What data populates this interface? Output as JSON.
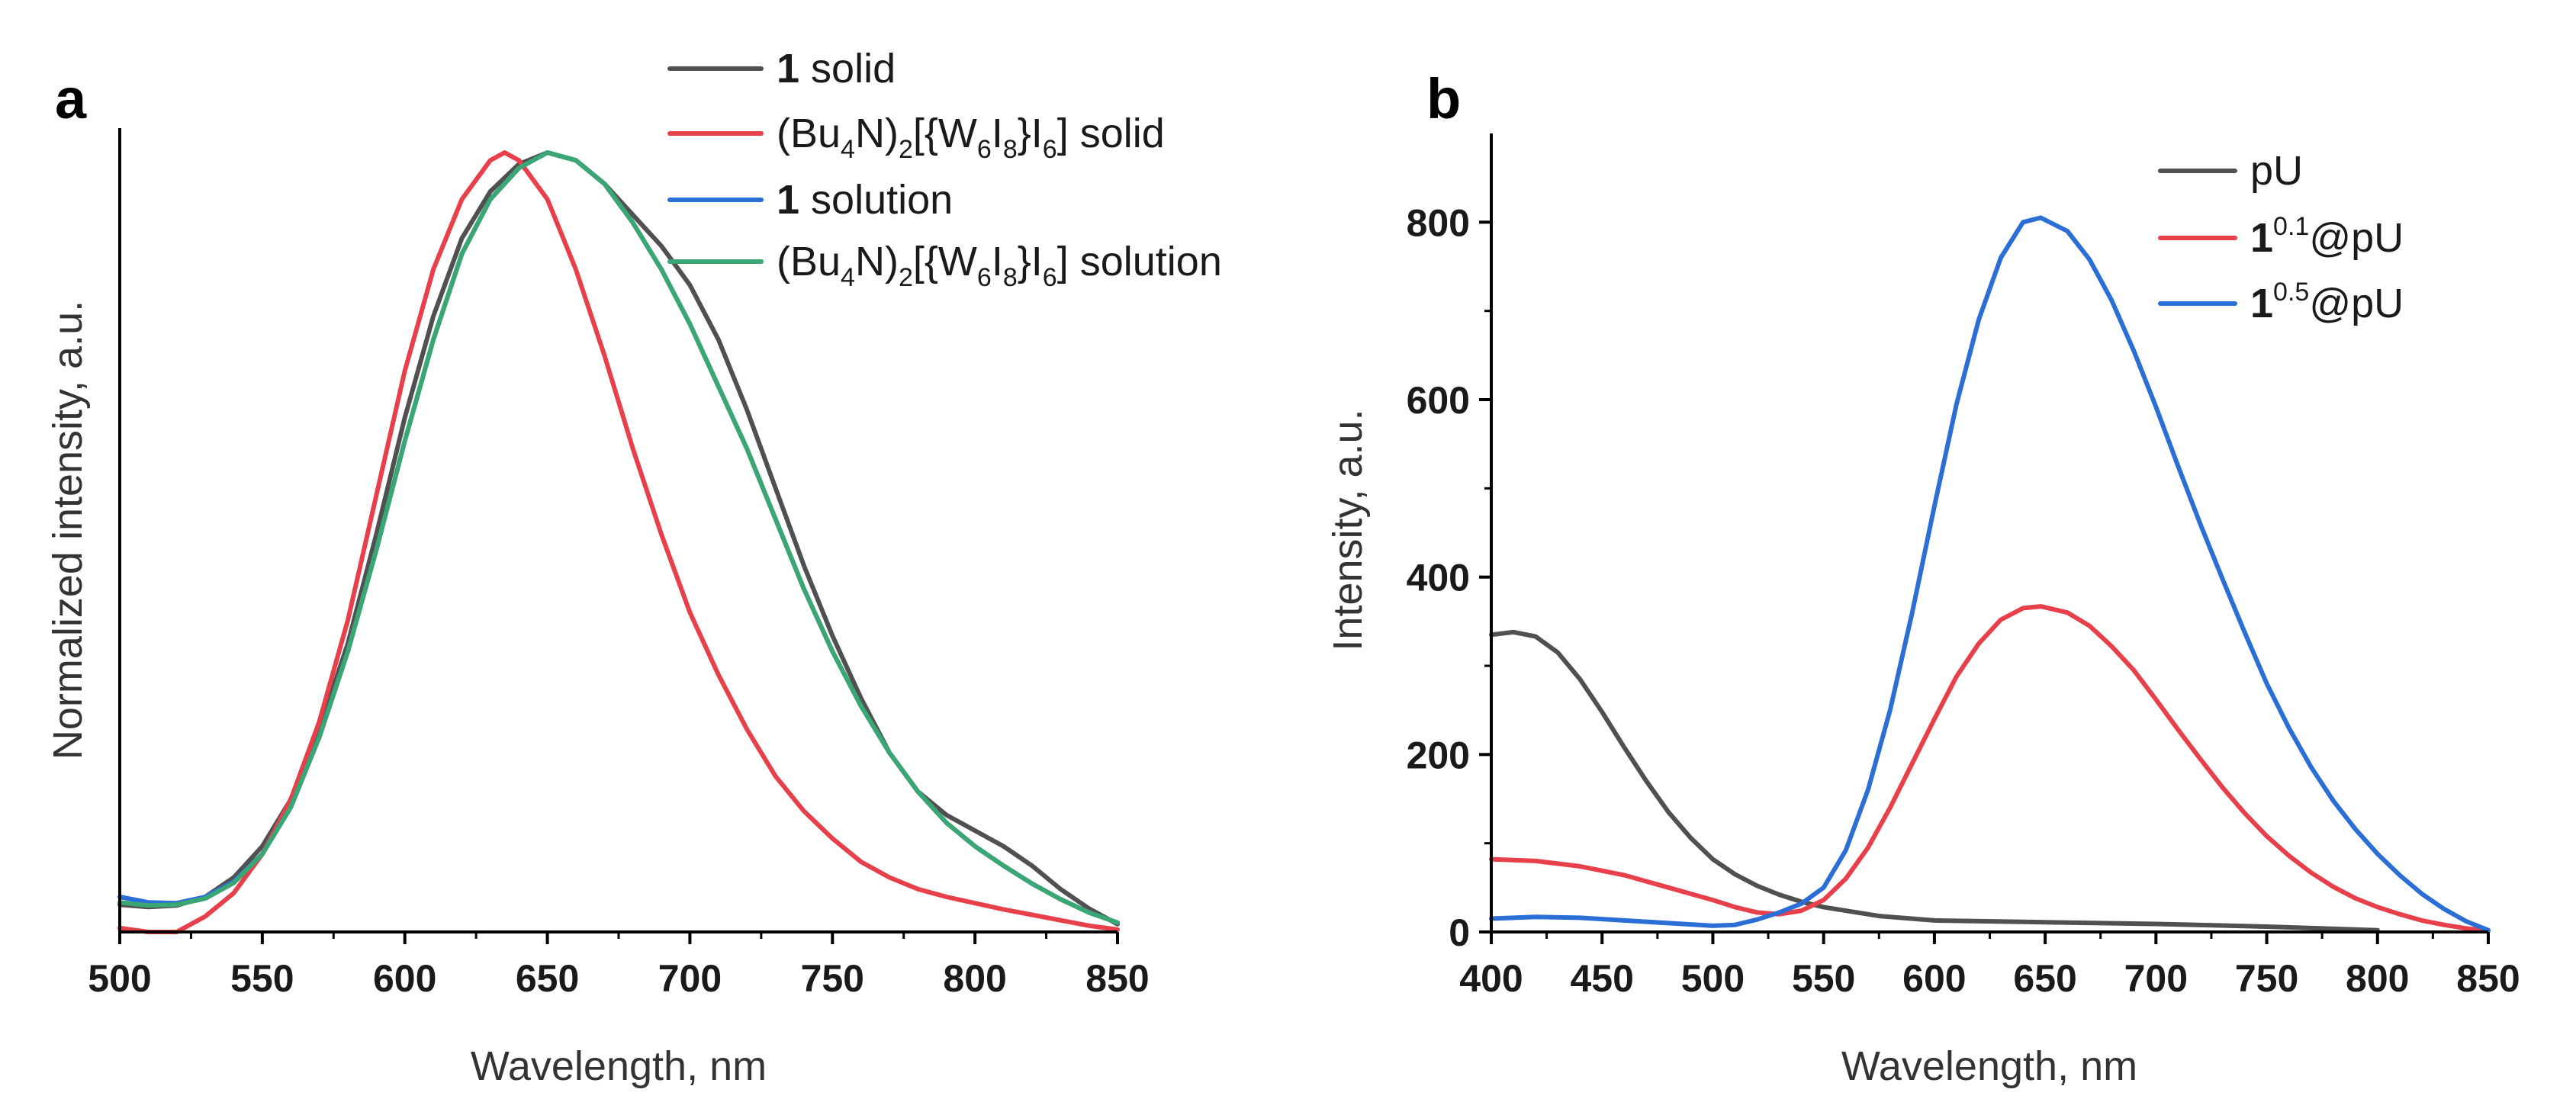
{
  "colors": {
    "dark_gray": "#505050",
    "red": "#e8404a",
    "blue": "#2b6fd6",
    "green": "#3aa673"
  },
  "chart_data": [
    {
      "panel": "a",
      "type": "line",
      "title": "",
      "xlabel": "Wavelength, nm",
      "ylabel": "Normalized intensity, a.u.",
      "xlim": [
        500,
        850
      ],
      "ylim": [
        0,
        1
      ],
      "x_ticks": [
        "500",
        "550",
        "600",
        "650",
        "700",
        "750",
        "800",
        "850"
      ],
      "y_ticks": [],
      "grid": false,
      "legend_position": "top-right",
      "legend": [
        {
          "bold": "1",
          "text": " solid",
          "color": "dark_gray"
        },
        {
          "pre": "(Bu",
          "sub1": "4",
          "mid1": "N)",
          "sub2": "2",
          "mid2": "[{W",
          "sub3": "6",
          "mid3": "I",
          "sub4": "8",
          "mid4": "}I",
          "sub5": "6",
          "post": "] solid",
          "color": "red"
        },
        {
          "bold": "1",
          "text": " solution",
          "color": "blue"
        },
        {
          "pre": "(Bu",
          "sub1": "4",
          "mid1": "N)",
          "sub2": "2",
          "mid2": "[{W",
          "sub3": "6",
          "mid3": "I",
          "sub4": "8",
          "mid4": "}I",
          "sub5": "6",
          "post": "] solution",
          "color": "green"
        }
      ],
      "series": [
        {
          "name": "1 solid",
          "color": "dark_gray",
          "x": [
            500,
            510,
            520,
            530,
            540,
            550,
            560,
            570,
            580,
            590,
            600,
            610,
            620,
            630,
            640,
            650,
            660,
            670,
            680,
            690,
            700,
            710,
            720,
            730,
            740,
            750,
            760,
            770,
            780,
            790,
            800,
            810,
            820,
            830,
            840,
            850
          ],
          "y": [
            0.035,
            0.032,
            0.034,
            0.045,
            0.07,
            0.11,
            0.17,
            0.26,
            0.37,
            0.51,
            0.66,
            0.79,
            0.89,
            0.95,
            0.985,
            1.0,
            0.99,
            0.96,
            0.92,
            0.88,
            0.83,
            0.76,
            0.67,
            0.57,
            0.47,
            0.38,
            0.3,
            0.23,
            0.18,
            0.15,
            0.13,
            0.11,
            0.085,
            0.055,
            0.03,
            0.01
          ]
        },
        {
          "name": "(Bu4N)2[{W6I8}I6] solid",
          "color": "red",
          "x": [
            500,
            510,
            520,
            530,
            540,
            550,
            560,
            570,
            580,
            590,
            600,
            610,
            620,
            630,
            635,
            640,
            650,
            660,
            670,
            680,
            690,
            700,
            710,
            720,
            730,
            740,
            750,
            760,
            770,
            780,
            790,
            800,
            810,
            820,
            830,
            840,
            850
          ],
          "y": [
            0.005,
            0.0,
            0.0,
            0.02,
            0.05,
            0.1,
            0.17,
            0.27,
            0.4,
            0.56,
            0.72,
            0.85,
            0.94,
            0.99,
            1.0,
            0.99,
            0.94,
            0.85,
            0.74,
            0.62,
            0.51,
            0.41,
            0.33,
            0.26,
            0.2,
            0.155,
            0.12,
            0.09,
            0.07,
            0.055,
            0.045,
            0.037,
            0.029,
            0.022,
            0.015,
            0.008,
            0.003
          ]
        },
        {
          "name": "1 solution",
          "color": "blue",
          "x": [
            500,
            510,
            520,
            530,
            540,
            550,
            560,
            570,
            580,
            590,
            600,
            610,
            620,
            630,
            640,
            650,
            660,
            670,
            680,
            690,
            700,
            710,
            720,
            730,
            740,
            750,
            760,
            770,
            780,
            790,
            800,
            810,
            820,
            830,
            840,
            850
          ],
          "y": [
            0.045,
            0.038,
            0.037,
            0.045,
            0.065,
            0.1,
            0.16,
            0.25,
            0.36,
            0.49,
            0.63,
            0.76,
            0.87,
            0.94,
            0.98,
            1.0,
            0.99,
            0.96,
            0.91,
            0.85,
            0.78,
            0.7,
            0.62,
            0.53,
            0.44,
            0.36,
            0.29,
            0.23,
            0.18,
            0.14,
            0.11,
            0.085,
            0.062,
            0.042,
            0.025,
            0.012
          ]
        },
        {
          "name": "(Bu4N)2[{W6I8}I6] solution",
          "color": "green",
          "x": [
            500,
            510,
            520,
            530,
            540,
            550,
            560,
            570,
            580,
            590,
            600,
            610,
            620,
            630,
            640,
            650,
            660,
            670,
            680,
            690,
            700,
            710,
            720,
            730,
            740,
            750,
            760,
            770,
            780,
            790,
            800,
            810,
            820,
            830,
            840,
            850
          ],
          "y": [
            0.038,
            0.034,
            0.035,
            0.043,
            0.063,
            0.1,
            0.16,
            0.25,
            0.36,
            0.49,
            0.63,
            0.76,
            0.87,
            0.94,
            0.98,
            1.0,
            0.99,
            0.96,
            0.91,
            0.85,
            0.78,
            0.7,
            0.62,
            0.53,
            0.44,
            0.36,
            0.29,
            0.23,
            0.18,
            0.14,
            0.11,
            0.085,
            0.062,
            0.042,
            0.025,
            0.012
          ]
        }
      ]
    },
    {
      "panel": "b",
      "type": "line",
      "title": "",
      "xlabel": "Wavelength, nm",
      "ylabel": "Intensity, a.u.",
      "xlim": [
        400,
        850
      ],
      "ylim": [
        0,
        900
      ],
      "x_ticks": [
        "400",
        "450",
        "500",
        "550",
        "600",
        "650",
        "700",
        "750",
        "800",
        "850"
      ],
      "y_ticks": [
        "0",
        "200",
        "400",
        "600",
        "800"
      ],
      "grid": false,
      "legend_position": "top-right",
      "legend": [
        {
          "text": "pU",
          "color": "dark_gray"
        },
        {
          "bold": "1",
          "sup": "0.1",
          "text": "@pU",
          "color": "red"
        },
        {
          "bold": "1",
          "sup": "0.5",
          "text": "@pU",
          "color": "blue"
        }
      ],
      "series": [
        {
          "name": "pU",
          "color": "dark_gray",
          "x": [
            400,
            410,
            420,
            430,
            440,
            450,
            460,
            470,
            480,
            490,
            500,
            510,
            520,
            530,
            540,
            550,
            575,
            600,
            650,
            700,
            750,
            800
          ],
          "y": [
            335,
            338,
            333,
            315,
            285,
            248,
            208,
            170,
            135,
            106,
            82,
            65,
            52,
            42,
            34,
            28,
            18,
            13,
            11,
            9,
            6,
            2
          ]
        },
        {
          "name": "1^0.1@pU",
          "color": "red",
          "x": [
            400,
            420,
            440,
            460,
            480,
            500,
            510,
            520,
            530,
            540,
            550,
            560,
            570,
            580,
            590,
            600,
            610,
            620,
            630,
            640,
            648,
            660,
            670,
            680,
            690,
            700,
            710,
            720,
            730,
            740,
            750,
            760,
            770,
            780,
            790,
            800,
            810,
            820,
            830,
            840,
            850
          ],
          "y": [
            82,
            80,
            74,
            64,
            50,
            36,
            28,
            22,
            20,
            24,
            36,
            60,
            95,
            140,
            190,
            240,
            288,
            325,
            352,
            365,
            367,
            360,
            345,
            322,
            295,
            262,
            228,
            195,
            163,
            134,
            108,
            86,
            67,
            51,
            38,
            28,
            20,
            13,
            8,
            4,
            1
          ]
        },
        {
          "name": "1^0.5@pU",
          "color": "blue",
          "x": [
            400,
            420,
            440,
            460,
            480,
            500,
            510,
            520,
            530,
            540,
            550,
            560,
            570,
            580,
            590,
            600,
            610,
            620,
            630,
            640,
            648,
            660,
            670,
            680,
            690,
            700,
            710,
            720,
            730,
            740,
            750,
            760,
            770,
            780,
            790,
            800,
            810,
            820,
            830,
            840,
            850
          ],
          "y": [
            15,
            17,
            16,
            13,
            10,
            7,
            8,
            14,
            22,
            32,
            50,
            92,
            160,
            250,
            360,
            480,
            595,
            690,
            760,
            800,
            805,
            790,
            758,
            712,
            655,
            592,
            525,
            460,
            398,
            338,
            280,
            230,
            186,
            148,
            116,
            88,
            64,
            43,
            26,
            12,
            2
          ]
        }
      ]
    }
  ]
}
